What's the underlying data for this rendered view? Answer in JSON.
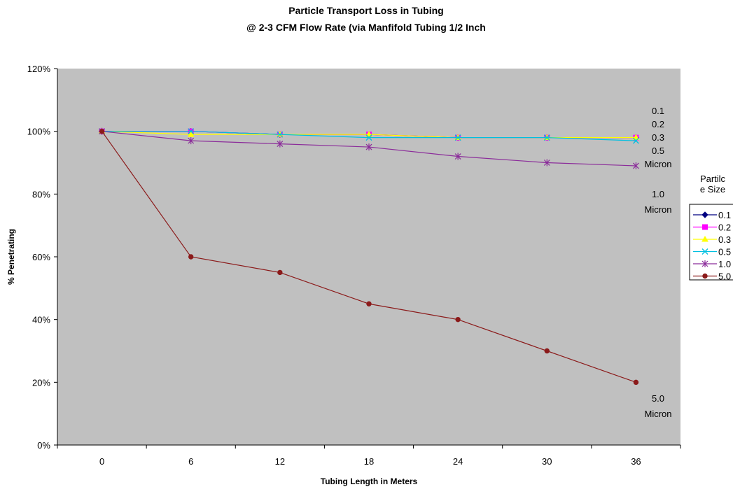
{
  "chart_data": {
    "type": "line",
    "title": "Particle Transport Loss in Tubing",
    "subtitle": "@ 2-3 CFM Flow Rate (via Manfifold Tubing 1/2 Inch",
    "xlabel": "Tubing Length in Meters",
    "ylabel": "% Penetrating",
    "categories": [
      "0",
      "6",
      "12",
      "18",
      "24",
      "30",
      "36"
    ],
    "ylim": [
      0,
      120
    ],
    "y_ticks": [
      "0%",
      "20%",
      "40%",
      "60%",
      "80%",
      "100%",
      "120%"
    ],
    "grid": false,
    "legend_title": "Partilc e Size",
    "legend_title_lines": [
      "Partilc",
      "e Size"
    ],
    "legend_position": "right",
    "series": [
      {
        "name": "0.1",
        "values": [
          100,
          100,
          99,
          99,
          98,
          98,
          98
        ],
        "color": "#000080",
        "marker": "diamond"
      },
      {
        "name": "0.2",
        "values": [
          100,
          100,
          99,
          99,
          98,
          98,
          98
        ],
        "color": "#FF00FF",
        "marker": "square"
      },
      {
        "name": "0.3",
        "values": [
          100,
          99,
          99,
          99,
          98,
          98,
          98
        ],
        "color": "#FFFF00",
        "marker": "triangle"
      },
      {
        "name": "0.5",
        "values": [
          100,
          100,
          99,
          98,
          98,
          98,
          97
        ],
        "color": "#00BFE0",
        "marker": "x"
      },
      {
        "name": "1.0",
        "values": [
          100,
          97,
          96,
          95,
          92,
          90,
          89
        ],
        "color": "#8B2C9A",
        "marker": "star"
      },
      {
        "name": "5.0",
        "values": [
          100,
          60,
          55,
          45,
          40,
          30,
          20
        ],
        "color": "#8B1A1A",
        "marker": "circle"
      }
    ],
    "annotations": {
      "small": [
        "0.1",
        "0.2",
        "0.3",
        "0.5",
        "Micron"
      ],
      "one": [
        "1.0",
        "Micron"
      ],
      "five": [
        "5.0",
        "Micron"
      ]
    },
    "colors": {
      "plot_background": "#C0C0C0",
      "axis": "#000000"
    }
  }
}
